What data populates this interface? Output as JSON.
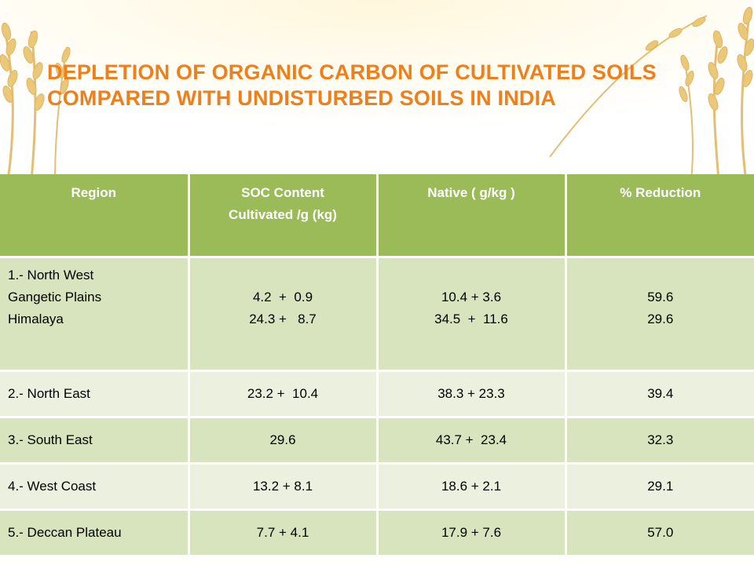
{
  "title": {
    "line1": "DEPLETION OF ORGANIC CARBON OF CULTIVATED SOILS",
    "line2": "COMPARED WITH UNDISTURBED SOILS IN INDIA"
  },
  "colors": {
    "title": "#ef7f1a",
    "header_bg": "#9bbb59",
    "row_dark": "#d7e4bd",
    "row_light": "#ebf1de"
  },
  "table": {
    "headers": {
      "region": "Region",
      "soc_line1": "SOC Content",
      "soc_line2": "Cultivated /g (kg)",
      "native": "Native ( g/kg )",
      "reduction": "% Reduction"
    },
    "rows": [
      {
        "region": [
          "1.- North West",
          "Gangetic Plains",
          "Himalaya"
        ],
        "cultivated": [
          "4.2  +  0.9",
          "24.3 +   8.7"
        ],
        "native": [
          "10.4 + 3.6",
          "34.5  +  11.6"
        ],
        "reduction": [
          "59.6",
          "29.6"
        ]
      },
      {
        "region": "2.- North East",
        "cultivated": "23.2 +  10.4",
        "native": "38.3 + 23.3",
        "reduction": "39.4"
      },
      {
        "region": "3.- South East",
        "cultivated": "29.6",
        "native": "43.7 +  23.4",
        "reduction": "32.3"
      },
      {
        "region": "4.- West Coast",
        "cultivated": "13.2 + 8.1",
        "native": "18.6 + 2.1",
        "reduction": "29.1"
      },
      {
        "region": "5.- Deccan Plateau",
        "cultivated": "7.7 + 4.1",
        "native": "17.9 + 7.6",
        "reduction": "57.0"
      }
    ]
  },
  "decoration": {
    "background": "wheat-ears-illustration"
  }
}
